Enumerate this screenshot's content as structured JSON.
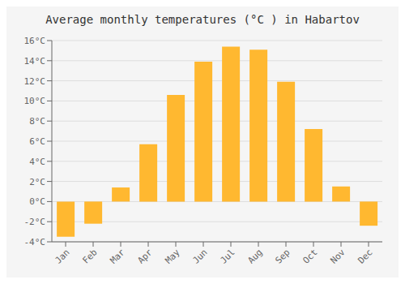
{
  "chart_data": {
    "type": "bar",
    "title": "Average monthly temperatures (°C ) in Habartov",
    "categories": [
      "Jan",
      "Feb",
      "Mar",
      "Apr",
      "May",
      "Jun",
      "Jul",
      "Aug",
      "Sep",
      "Oct",
      "Nov",
      "Dec"
    ],
    "values": [
      -3.5,
      -2.2,
      1.4,
      5.7,
      10.6,
      13.9,
      15.4,
      15.1,
      11.9,
      7.2,
      1.5,
      -2.4
    ],
    "color": "#FFB830",
    "ylim": [
      -4,
      16
    ],
    "yticks": [
      {
        "value": -4,
        "label": "-4°C"
      },
      {
        "value": -2,
        "label": "-2°C"
      },
      {
        "value": 0,
        "label": "0°C"
      },
      {
        "value": 2,
        "label": "2°C"
      },
      {
        "value": 4,
        "label": "4°C"
      },
      {
        "value": 6,
        "label": "6°C"
      },
      {
        "value": 8,
        "label": "8°C"
      },
      {
        "value": 10,
        "label": "10°C"
      },
      {
        "value": 12,
        "label": "12°C"
      },
      {
        "value": 14,
        "label": "14°C"
      },
      {
        "value": 16,
        "label": "16°C"
      }
    ],
    "grid": true
  }
}
